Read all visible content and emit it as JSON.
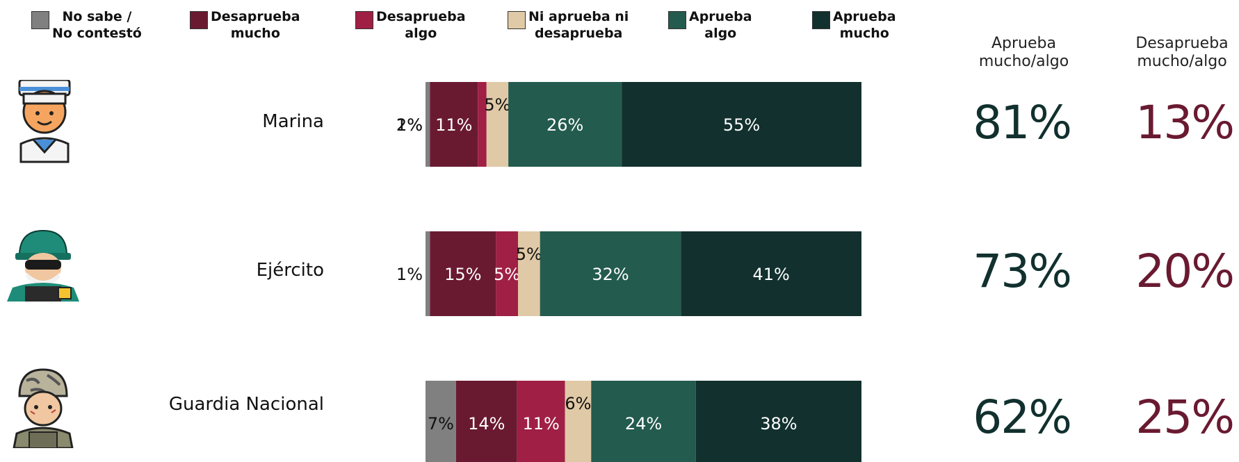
{
  "colors": {
    "no_sabe": "#808080",
    "desaprueba_mucho": "#691A31",
    "desaprueba_algo": "#A01F45",
    "ni_ni": "#E0C9A6",
    "aprueba_algo": "#235B4E",
    "aprueba_mucho": "#11302E",
    "approve_text": "#11302E",
    "disapprove_text": "#691A31"
  },
  "legend": [
    {
      "label": "No sabe /\nNo contestó",
      "color": "#808080"
    },
    {
      "label": "Desaprueba\nmucho",
      "color": "#691A31"
    },
    {
      "label": "Desaprueba\nalgo",
      "color": "#A01F45"
    },
    {
      "label": "Ni aprueba ni\ndesaprueba",
      "color": "#E0C9A6"
    },
    {
      "label": "Aprueba\nalgo",
      "color": "#235B4E"
    },
    {
      "label": "Aprueba\nmucho",
      "color": "#11302E"
    }
  ],
  "columns": {
    "approve": "Aprueba\nmucho/algo",
    "disapprove": "Desaprueba\nmucho/algo"
  },
  "rows": [
    {
      "category": "Marina",
      "icon": "sailor-icon",
      "approve": "81%",
      "disapprove": "13%"
    },
    {
      "category": "Ejército",
      "icon": "army-soldier-icon",
      "approve": "73%",
      "disapprove": "20%"
    },
    {
      "category": "Guardia Nacional",
      "icon": "national-guard-soldier-icon",
      "approve": "62%",
      "disapprove": "25%"
    }
  ],
  "chart_data": {
    "type": "bar",
    "orientation": "horizontal",
    "stacked": true,
    "categories": [
      "Marina",
      "Ejército",
      "Guardia Nacional"
    ],
    "series": [
      {
        "name": "No sabe / No contestó",
        "values": [
          1,
          1,
          7
        ],
        "labels": [
          "1%",
          "1%",
          "7%"
        ]
      },
      {
        "name": "Desaprueba mucho",
        "values": [
          11,
          15,
          14
        ],
        "labels": [
          "11%",
          "15%",
          "14%"
        ]
      },
      {
        "name": "Desaprueba algo",
        "values": [
          2,
          5,
          11
        ],
        "labels": [
          "2%",
          "5%",
          "11%"
        ]
      },
      {
        "name": "Ni aprueba ni desaprueba",
        "values": [
          5,
          5,
          6
        ],
        "labels": [
          "5%",
          "5%",
          "6%"
        ]
      },
      {
        "name": "Aprueba algo",
        "values": [
          26,
          32,
          24
        ],
        "labels": [
          "26%",
          "32%",
          "24%"
        ]
      },
      {
        "name": "Aprueba mucho",
        "values": [
          55,
          41,
          38
        ],
        "labels": [
          "55%",
          "41%",
          "38%"
        ]
      }
    ],
    "legend_position": "top",
    "grid": false
  }
}
